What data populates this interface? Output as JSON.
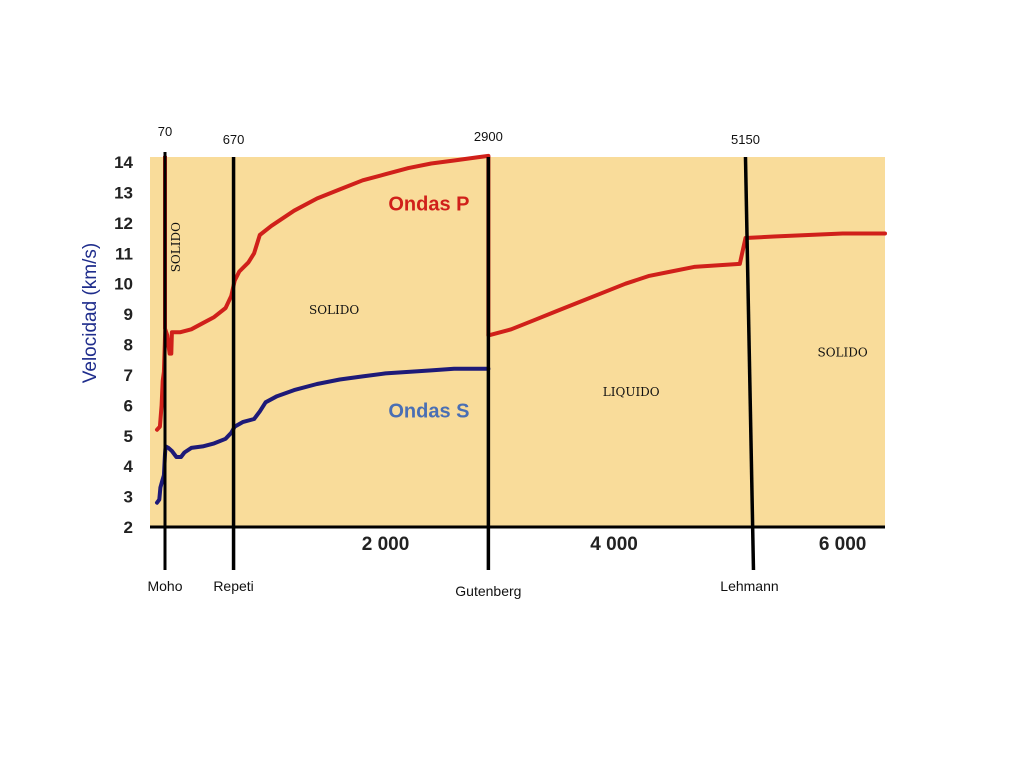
{
  "chart_data": {
    "type": "line",
    "ylabel": "Velocidad (km/s)",
    "xlabel": "",
    "ylim": [
      2,
      14
    ],
    "xlim": [
      0,
      6371
    ],
    "yticks": [
      2,
      3,
      4,
      5,
      6,
      7,
      8,
      9,
      10,
      11,
      12,
      13,
      14
    ],
    "xticks": [
      {
        "value": 2000,
        "label": "2 000"
      },
      {
        "value": 4000,
        "label": "4 000"
      },
      {
        "value": 6000,
        "label": "6 000"
      }
    ],
    "discontinuities": [
      {
        "depth": 70,
        "depth_label": "70",
        "name": "Moho"
      },
      {
        "depth": 670,
        "depth_label": "670",
        "name": "Repeti"
      },
      {
        "depth": 2900,
        "depth_label": "2900",
        "name": "Gutenberg"
      },
      {
        "depth": 5150,
        "depth_label": "5150",
        "name": "Lehmann"
      }
    ],
    "regions": [
      {
        "label": "SOLIDO",
        "x": 200,
        "y": 11.2,
        "rotated": true
      },
      {
        "label": "SOLIDO",
        "x": 1550,
        "y": 9.0,
        "rotated": false
      },
      {
        "label": "LIQUIDO",
        "x": 4150,
        "y": 6.3,
        "rotated": false
      },
      {
        "label": "SOLIDO",
        "x": 6000,
        "y": 7.6,
        "rotated": false
      }
    ],
    "series": [
      {
        "name": "Ondas P",
        "color": "#d0201a",
        "label_pos": {
          "x": 2380,
          "y": 12.4
        },
        "points": [
          [
            0,
            5.2
          ],
          [
            25,
            5.3
          ],
          [
            40,
            6.0
          ],
          [
            50,
            6.8
          ],
          [
            60,
            7.1
          ],
          [
            68,
            8.0
          ],
          [
            72,
            8.5
          ],
          [
            90,
            8.3
          ],
          [
            110,
            7.7
          ],
          [
            125,
            7.7
          ],
          [
            130,
            8.4
          ],
          [
            200,
            8.4
          ],
          [
            300,
            8.5
          ],
          [
            400,
            8.7
          ],
          [
            500,
            8.9
          ],
          [
            600,
            9.2
          ],
          [
            650,
            9.6
          ],
          [
            680,
            10.1
          ],
          [
            720,
            10.4
          ],
          [
            800,
            10.7
          ],
          [
            850,
            11.0
          ],
          [
            900,
            11.6
          ],
          [
            1000,
            11.9
          ],
          [
            1200,
            12.4
          ],
          [
            1400,
            12.8
          ],
          [
            1600,
            13.1
          ],
          [
            1800,
            13.4
          ],
          [
            2000,
            13.6
          ],
          [
            2200,
            13.8
          ],
          [
            2400,
            13.95
          ],
          [
            2600,
            14.05
          ],
          [
            2800,
            14.15
          ],
          [
            2900,
            14.2
          ]
        ]
      },
      {
        "name": "Ondas P",
        "color": "#d0201a",
        "points": [
          [
            2900,
            8.3
          ],
          [
            3100,
            8.5
          ],
          [
            3300,
            8.8
          ],
          [
            3500,
            9.1
          ],
          [
            3700,
            9.4
          ],
          [
            3900,
            9.7
          ],
          [
            4100,
            10.0
          ],
          [
            4300,
            10.25
          ],
          [
            4500,
            10.4
          ],
          [
            4700,
            10.55
          ],
          [
            4900,
            10.6
          ],
          [
            5100,
            10.65
          ],
          [
            5150,
            11.5
          ],
          [
            5400,
            11.55
          ],
          [
            5700,
            11.6
          ],
          [
            6000,
            11.65
          ],
          [
            6371,
            11.65
          ]
        ]
      },
      {
        "name": "Ondas S",
        "color": "#1e1a78",
        "label_pos": {
          "x": 2380,
          "y": 5.6
        },
        "points": [
          [
            0,
            2.8
          ],
          [
            20,
            2.9
          ],
          [
            30,
            3.3
          ],
          [
            45,
            3.5
          ],
          [
            60,
            3.7
          ],
          [
            70,
            4.4
          ],
          [
            75,
            4.65
          ],
          [
            100,
            4.6
          ],
          [
            130,
            4.5
          ],
          [
            170,
            4.3
          ],
          [
            210,
            4.3
          ],
          [
            240,
            4.45
          ],
          [
            300,
            4.6
          ],
          [
            400,
            4.65
          ],
          [
            500,
            4.75
          ],
          [
            600,
            4.9
          ],
          [
            650,
            5.1
          ],
          [
            680,
            5.3
          ],
          [
            750,
            5.45
          ],
          [
            850,
            5.55
          ],
          [
            900,
            5.8
          ],
          [
            950,
            6.1
          ],
          [
            1050,
            6.3
          ],
          [
            1200,
            6.5
          ],
          [
            1400,
            6.7
          ],
          [
            1600,
            6.85
          ],
          [
            1800,
            6.95
          ],
          [
            2000,
            7.05
          ],
          [
            2200,
            7.1
          ],
          [
            2400,
            7.15
          ],
          [
            2600,
            7.2
          ],
          [
            2800,
            7.2
          ],
          [
            2900,
            7.2
          ]
        ]
      }
    ]
  }
}
